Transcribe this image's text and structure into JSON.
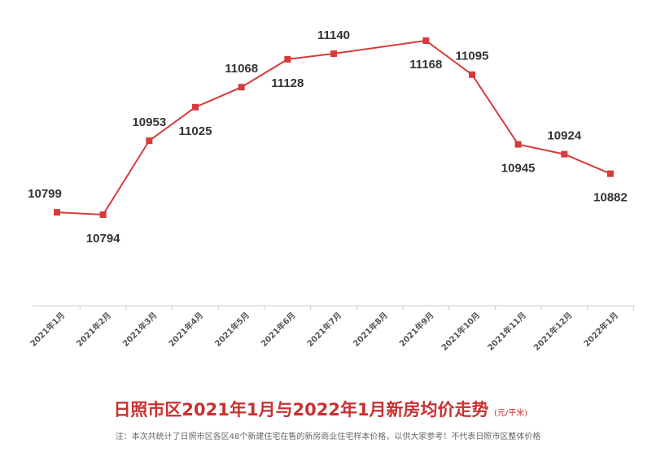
{
  "chart_data": {
    "type": "line",
    "title": "日照市区2021年1月与2022年1月新房均价走势",
    "unit": "(元/平米)",
    "note": "注：本次共统计了日照市区各区48个新建住宅在售的新房商业住宅样本价格，以供大家参考！不代表日照市区整体价格",
    "categories": [
      "2021年1月",
      "2021年2月",
      "2021年3月",
      "2021年4月",
      "2021年5月",
      "2021年6月",
      "2021年7月",
      "2021年8月",
      "2021年9月",
      "2021年10月",
      "2021年11月",
      "2021年12月",
      "2022年1月"
    ],
    "series": [
      {
        "name": "均价",
        "color": "#d63b3b",
        "values": [
          10799,
          10794,
          10953,
          11025,
          11068,
          11128,
          11140,
          null,
          11168,
          11095,
          10945,
          10924,
          10882
        ]
      }
    ],
    "connect_gaps": true
  }
}
